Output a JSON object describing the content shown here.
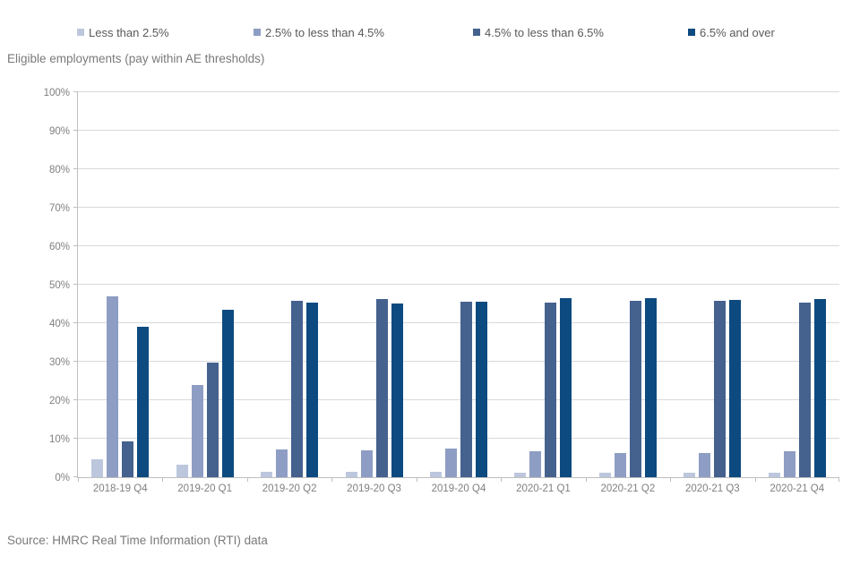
{
  "subtitle": "Eligible employments (pay within AE thresholds)",
  "source": "Source: HMRC Real Time Information (RTI) data",
  "chart_data": {
    "type": "bar",
    "title": "Eligible employments (pay within AE thresholds)",
    "xlabel": "",
    "ylabel": "",
    "ylim": [
      0,
      100
    ],
    "ytick_step": 10,
    "ytick_suffix": "%",
    "grid": true,
    "legend_position": "top",
    "categories": [
      "2018-19 Q4",
      "2019-20 Q1",
      "2019-20 Q2",
      "2019-20 Q3",
      "2019-20 Q4",
      "2020-21 Q1",
      "2020-21 Q2",
      "2020-21 Q3",
      "2020-21 Q4"
    ],
    "series": [
      {
        "name": "Less than 2.5%",
        "color": "#bcc7de",
        "values": [
          4.7,
          3.2,
          1.3,
          1.3,
          1.3,
          1.2,
          1.1,
          1.2,
          1.2
        ]
      },
      {
        "name": "2.5% to less than 4.5%",
        "color": "#8e9dc3",
        "values": [
          47.0,
          24.0,
          7.2,
          7.0,
          7.5,
          6.8,
          6.3,
          6.3,
          6.7
        ]
      },
      {
        "name": "4.5% to less than 6.5%",
        "color": "#45618e",
        "values": [
          9.2,
          29.7,
          45.9,
          46.2,
          45.5,
          45.4,
          45.9,
          45.9,
          45.4
        ]
      },
      {
        "name": "6.5% and over",
        "color": "#0d4a80",
        "values": [
          39.0,
          43.4,
          45.4,
          45.2,
          45.7,
          46.4,
          46.4,
          46.1,
          46.2
        ]
      }
    ],
    "colors": {
      "gridline": "#d9d9d9",
      "axis": "#bfbfbf",
      "tick_label": "#808080",
      "legend_text": "#595959"
    }
  }
}
